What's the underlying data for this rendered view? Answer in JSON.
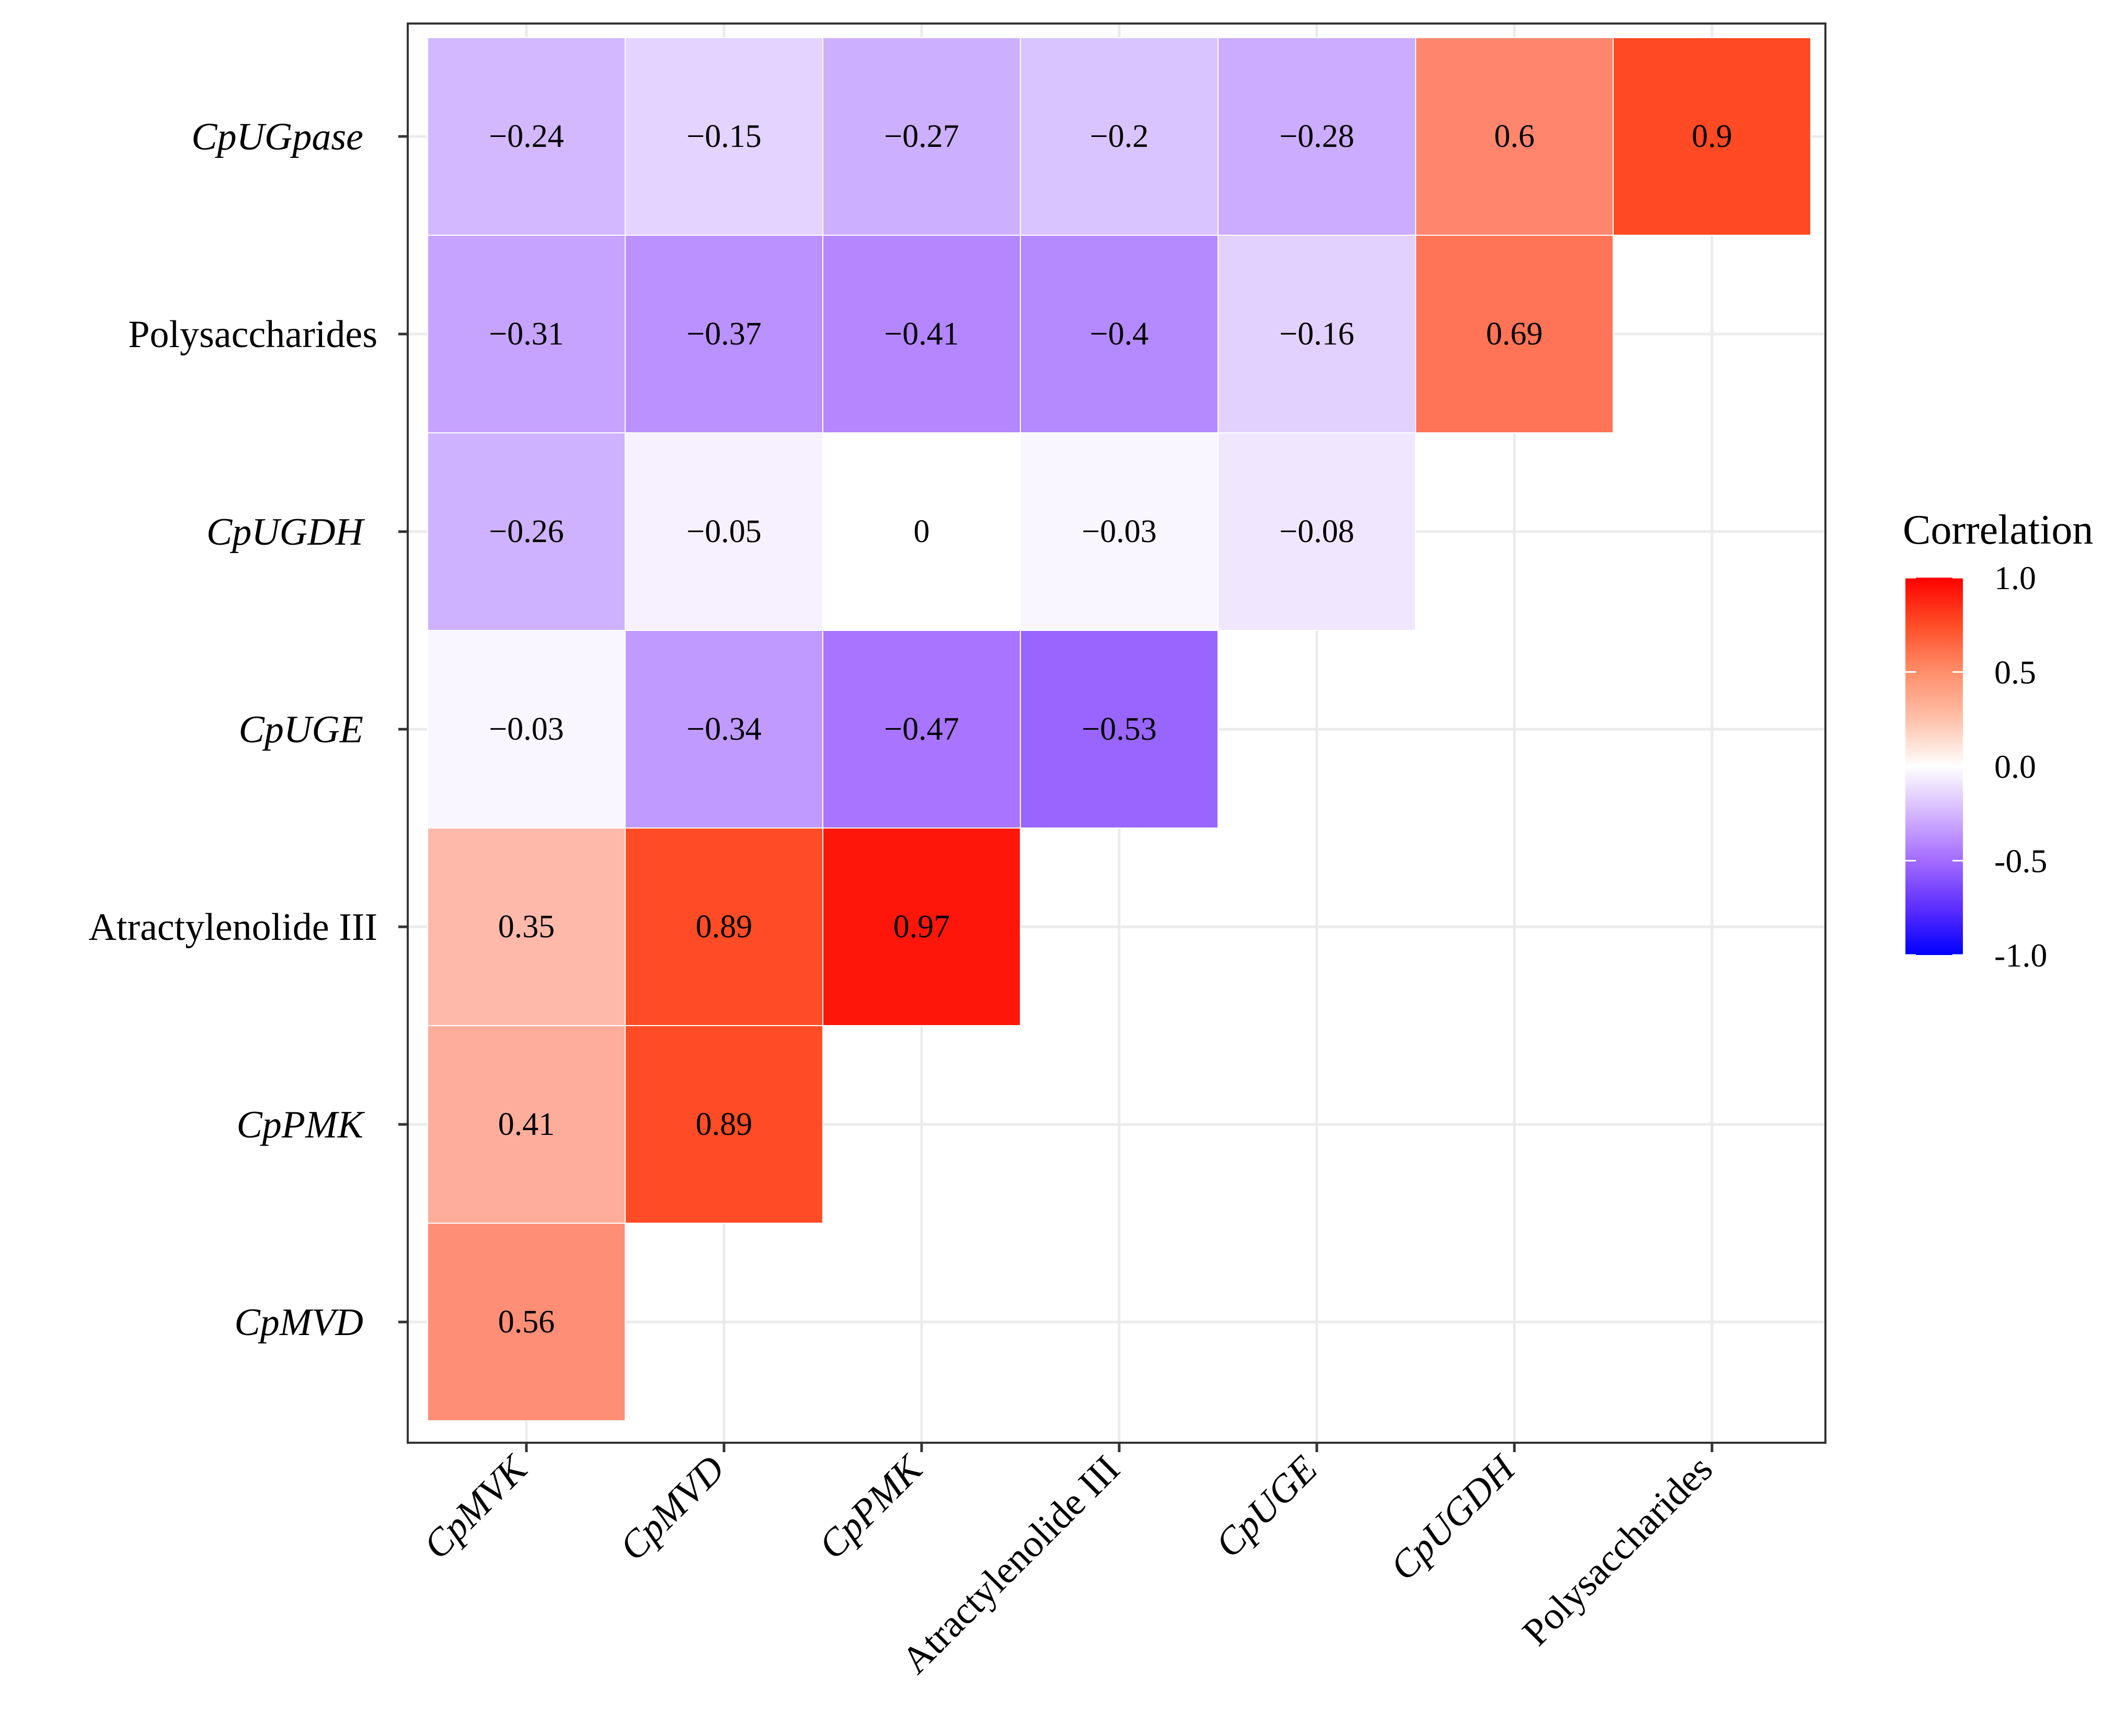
{
  "chart_data": {
    "type": "heatmap",
    "title": "",
    "xlabel": "",
    "ylabel": "",
    "grid": true,
    "x_categories": [
      {
        "label": "CpMVK",
        "italic": true
      },
      {
        "label": "CpMVD",
        "italic": true
      },
      {
        "label": "CpPMK",
        "italic": true
      },
      {
        "label": "Atractylenolide III",
        "italic": false
      },
      {
        "label": "CpUGE",
        "italic": true
      },
      {
        "label": "CpUGDH",
        "italic": true
      },
      {
        "label": "Polysaccharides",
        "italic": false
      }
    ],
    "y_categories_top_to_bottom": [
      {
        "label": "CpUGpase",
        "italic": true
      },
      {
        "label": "Polysaccharides",
        "italic": false
      },
      {
        "label": "CpUGDH",
        "italic": true
      },
      {
        "label": "CpUGE",
        "italic": true
      },
      {
        "label": "Atractylenolide III",
        "italic": false
      },
      {
        "label": "CpPMK",
        "italic": true
      },
      {
        "label": "CpMVD",
        "italic": true
      }
    ],
    "values": [
      [
        -0.24,
        -0.15,
        -0.27,
        -0.2,
        -0.28,
        0.6,
        0.9
      ],
      [
        -0.31,
        -0.37,
        -0.41,
        -0.4,
        -0.16,
        0.69,
        null
      ],
      [
        -0.26,
        -0.05,
        0,
        -0.03,
        -0.08,
        null,
        null
      ],
      [
        -0.03,
        -0.34,
        -0.47,
        -0.53,
        null,
        null,
        null
      ],
      [
        0.35,
        0.89,
        0.97,
        null,
        null,
        null,
        null
      ],
      [
        0.41,
        0.89,
        null,
        null,
        null,
        null,
        null
      ],
      [
        0.56,
        null,
        null,
        null,
        null,
        null,
        null
      ]
    ],
    "value_labels": [
      [
        "−0.24",
        "−0.15",
        "−0.27",
        "−0.2",
        "−0.28",
        "0.6",
        "0.9"
      ],
      [
        "−0.31",
        "−0.37",
        "−0.41",
        "−0.4",
        "−0.16",
        "0.69",
        null
      ],
      [
        "−0.26",
        "−0.05",
        "0",
        "−0.03",
        "−0.08",
        null,
        null
      ],
      [
        "−0.03",
        "−0.34",
        "−0.47",
        "−0.53",
        null,
        null,
        null
      ],
      [
        "0.35",
        "0.89",
        "0.97",
        null,
        null,
        null,
        null
      ],
      [
        "0.41",
        "0.89",
        null,
        null,
        null,
        null,
        null
      ],
      [
        "0.56",
        null,
        null,
        null,
        null,
        null,
        null
      ]
    ],
    "legend": {
      "title": "Correlation",
      "placement": "right",
      "range": [
        -1.0,
        1.0
      ],
      "ticks": [
        {
          "value": 1.0,
          "label": "1.0"
        },
        {
          "value": 0.5,
          "label": "0.5"
        },
        {
          "value": 0.0,
          "label": "0.0"
        },
        {
          "value": -0.5,
          "label": "-0.5"
        },
        {
          "value": -1.0,
          "label": "-1.0"
        }
      ]
    },
    "colors": {
      "low": "#0000ff",
      "mid": "#ffffff",
      "high": "#ff0000",
      "mid_low_tint": "#a36bff",
      "mid_high_tint": "#ff4a24",
      "grid": "#ebebeb",
      "panel_border": "#333333",
      "tick": "#333333",
      "cell_border": "#ffffff"
    }
  }
}
